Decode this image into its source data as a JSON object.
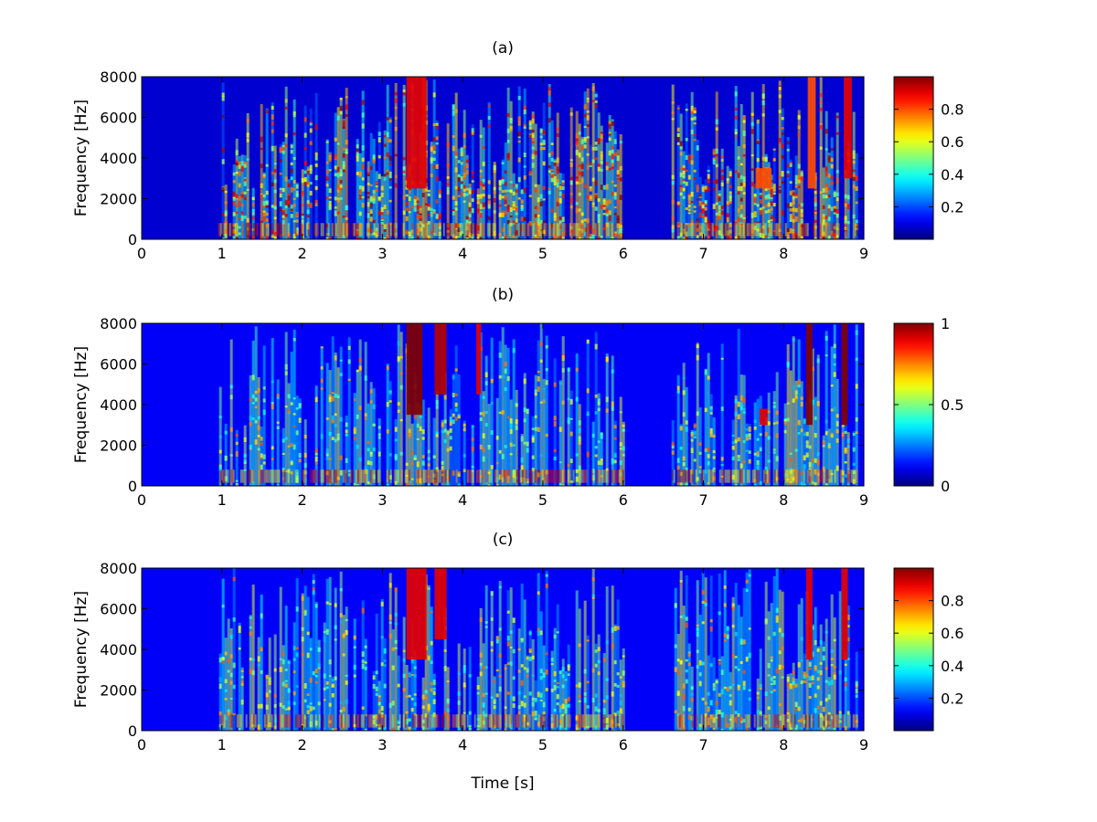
{
  "figure": {
    "xlabel": "Time [s]",
    "ylabel": "Frequency [Hz]"
  },
  "chart_data": [
    {
      "type": "heatmap",
      "title": "(a)",
      "xlabel": "",
      "ylabel": "Frequency [Hz]",
      "x_range": [
        0,
        9
      ],
      "y_range": [
        0,
        8000
      ],
      "x_ticks": [
        0,
        1,
        2,
        3,
        4,
        5,
        6,
        7,
        8,
        9
      ],
      "y_ticks": [
        0,
        2000,
        4000,
        6000,
        8000
      ],
      "colorbar": {
        "range": [
          0,
          1
        ],
        "ticks": [
          0.2,
          0.4,
          0.6,
          0.8
        ],
        "tick_labels": [
          "0.2",
          "0.4",
          "0.6",
          "0.8"
        ]
      },
      "colormap": "jet",
      "speech_onset_s": 0.93,
      "speech_end_s": 8.92,
      "silence_segments_s": [
        [
          0,
          0.93
        ],
        [
          6.0,
          6.6
        ],
        [
          8.92,
          9
        ]
      ],
      "dominant_regions": [
        {
          "t": [
            3.3,
            3.55
          ],
          "f": [
            2500,
            8000
          ],
          "level": 0.9
        },
        {
          "t": [
            8.75,
            8.85
          ],
          "f": [
            3000,
            8000
          ],
          "level": 0.9
        },
        {
          "t": [
            8.3,
            8.4
          ],
          "f": [
            2500,
            8000
          ],
          "level": 0.8
        },
        {
          "t": [
            7.65,
            7.85
          ],
          "f": [
            2500,
            3500
          ],
          "level": 0.8
        }
      ]
    },
    {
      "type": "heatmap",
      "title": "(b)",
      "xlabel": "",
      "ylabel": "Frequency [Hz]",
      "x_range": [
        0,
        9
      ],
      "y_range": [
        0,
        8000
      ],
      "x_ticks": [
        0,
        1,
        2,
        3,
        4,
        5,
        6,
        7,
        8,
        9
      ],
      "y_ticks": [
        0,
        2000,
        4000,
        6000,
        8000
      ],
      "colorbar": {
        "range": [
          0,
          1
        ],
        "ticks": [
          0,
          0.5,
          1
        ],
        "tick_labels": [
          "0",
          "0.5",
          "1"
        ]
      },
      "colormap": "jet",
      "speech_onset_s": 0.93,
      "speech_end_s": 8.92,
      "silence_segments_s": [
        [
          0,
          0.93
        ],
        [
          6.0,
          6.6
        ],
        [
          8.92,
          9
        ]
      ],
      "dominant_regions": [
        {
          "t": [
            3.3,
            3.5
          ],
          "f": [
            3500,
            8000
          ],
          "level": 1.0
        },
        {
          "t": [
            3.65,
            3.8
          ],
          "f": [
            4500,
            8000
          ],
          "level": 0.95
        },
        {
          "t": [
            4.17,
            4.23
          ],
          "f": [
            4500,
            8000
          ],
          "level": 0.9
        },
        {
          "t": [
            8.28,
            8.36
          ],
          "f": [
            3000,
            8000
          ],
          "level": 1.0
        },
        {
          "t": [
            8.72,
            8.8
          ],
          "f": [
            3000,
            8000
          ],
          "level": 1.0
        },
        {
          "t": [
            7.7,
            7.8
          ],
          "f": [
            3000,
            3800
          ],
          "level": 0.9
        }
      ]
    },
    {
      "type": "heatmap",
      "title": "(c)",
      "xlabel": "Time [s]",
      "ylabel": "Frequency [Hz]",
      "x_range": [
        0,
        9
      ],
      "y_range": [
        0,
        8000
      ],
      "x_ticks": [
        0,
        1,
        2,
        3,
        4,
        5,
        6,
        7,
        8,
        9
      ],
      "y_ticks": [
        0,
        2000,
        4000,
        6000,
        8000
      ],
      "colorbar": {
        "range": [
          0,
          1
        ],
        "ticks": [
          0.2,
          0.4,
          0.6,
          0.8
        ],
        "tick_labels": [
          "0.2",
          "0.4",
          "0.6",
          "0.8"
        ]
      },
      "colormap": "jet",
      "speech_onset_s": 0.93,
      "speech_end_s": 8.92,
      "silence_segments_s": [
        [
          0,
          0.93
        ],
        [
          6.0,
          6.6
        ],
        [
          8.92,
          9
        ]
      ],
      "dominant_regions": [
        {
          "t": [
            3.3,
            3.55
          ],
          "f": [
            3500,
            8000
          ],
          "level": 0.9
        },
        {
          "t": [
            3.65,
            3.8
          ],
          "f": [
            4500,
            8000
          ],
          "level": 0.9
        },
        {
          "t": [
            8.28,
            8.36
          ],
          "f": [
            3500,
            8000
          ],
          "level": 0.9
        },
        {
          "t": [
            8.72,
            8.8
          ],
          "f": [
            3500,
            8000
          ],
          "level": 0.9
        }
      ]
    }
  ]
}
